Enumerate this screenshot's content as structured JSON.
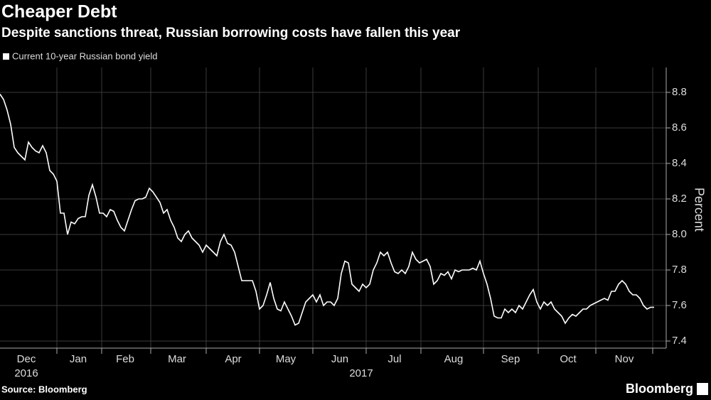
{
  "chart_data": {
    "type": "line",
    "title": "Cheaper Debt",
    "subtitle": "Despite sanctions threat, Russian borrowing costs have fallen this year",
    "y_label": "Percent",
    "source": "Source: Bloomberg",
    "brand": "Bloomberg",
    "month_labels": [
      "Dec",
      "Jan",
      "Feb",
      "Mar",
      "Apr",
      "May",
      "Jun",
      "Jul",
      "Aug",
      "Sep",
      "Oct",
      "Nov"
    ],
    "year_labels": [
      "2016",
      "2017"
    ],
    "ylim": [
      7.36,
      8.94
    ],
    "yticks": [
      7.4,
      7.6,
      7.8,
      {
        "value": 8,
        "label": "8.0"
      },
      8.2,
      8.4,
      8.6,
      8.8
    ],
    "grid": true,
    "series": [
      {
        "name": "Current 10-year Russian bond yield",
        "color": "#ffffff",
        "values": [
          8.79,
          8.76,
          8.7,
          8.62,
          8.49,
          8.46,
          8.44,
          8.42,
          8.52,
          8.49,
          8.47,
          8.46,
          8.5,
          8.46,
          8.36,
          8.34,
          8.3,
          8.12,
          8.12,
          8.0,
          8.07,
          8.06,
          8.09,
          8.1,
          8.1,
          8.22,
          8.28,
          8.21,
          8.12,
          8.12,
          8.1,
          8.14,
          8.13,
          8.08,
          8.04,
          8.02,
          8.08,
          8.14,
          8.19,
          8.2,
          8.2,
          8.21,
          8.26,
          8.24,
          8.21,
          8.18,
          8.12,
          8.14,
          8.08,
          8.04,
          7.98,
          7.96,
          8.0,
          8.02,
          7.98,
          7.96,
          7.94,
          7.9,
          7.94,
          7.92,
          7.9,
          7.88,
          7.96,
          8.0,
          7.95,
          7.94,
          7.9,
          7.82,
          7.74,
          7.74,
          7.74,
          7.74,
          7.68,
          7.58,
          7.6,
          7.66,
          7.73,
          7.64,
          7.58,
          7.57,
          7.62,
          7.58,
          7.54,
          7.49,
          7.5,
          7.56,
          7.62,
          7.64,
          7.66,
          7.62,
          7.66,
          7.6,
          7.62,
          7.62,
          7.6,
          7.64,
          7.78,
          7.85,
          7.84,
          7.72,
          7.7,
          7.68,
          7.72,
          7.7,
          7.72,
          7.8,
          7.84,
          7.9,
          7.88,
          7.9,
          7.84,
          7.79,
          7.78,
          7.8,
          7.78,
          7.82,
          7.9,
          7.86,
          7.84,
          7.85,
          7.86,
          7.82,
          7.72,
          7.74,
          7.78,
          7.77,
          7.79,
          7.75,
          7.8,
          7.79,
          7.8,
          7.8,
          7.8,
          7.81,
          7.8,
          7.85,
          7.78,
          7.72,
          7.64,
          7.54,
          7.53,
          7.53,
          7.58,
          7.56,
          7.58,
          7.56,
          7.6,
          7.58,
          7.62,
          7.66,
          7.69,
          7.62,
          7.58,
          7.62,
          7.6,
          7.62,
          7.58,
          7.56,
          7.54,
          7.5,
          7.53,
          7.55,
          7.54,
          7.56,
          7.58,
          7.58,
          7.6,
          7.61,
          7.62,
          7.63,
          7.64,
          7.63,
          7.68,
          7.68,
          7.72,
          7.74,
          7.72,
          7.68,
          7.66,
          7.66,
          7.64,
          7.6,
          7.58,
          7.59,
          7.59
        ]
      }
    ]
  }
}
